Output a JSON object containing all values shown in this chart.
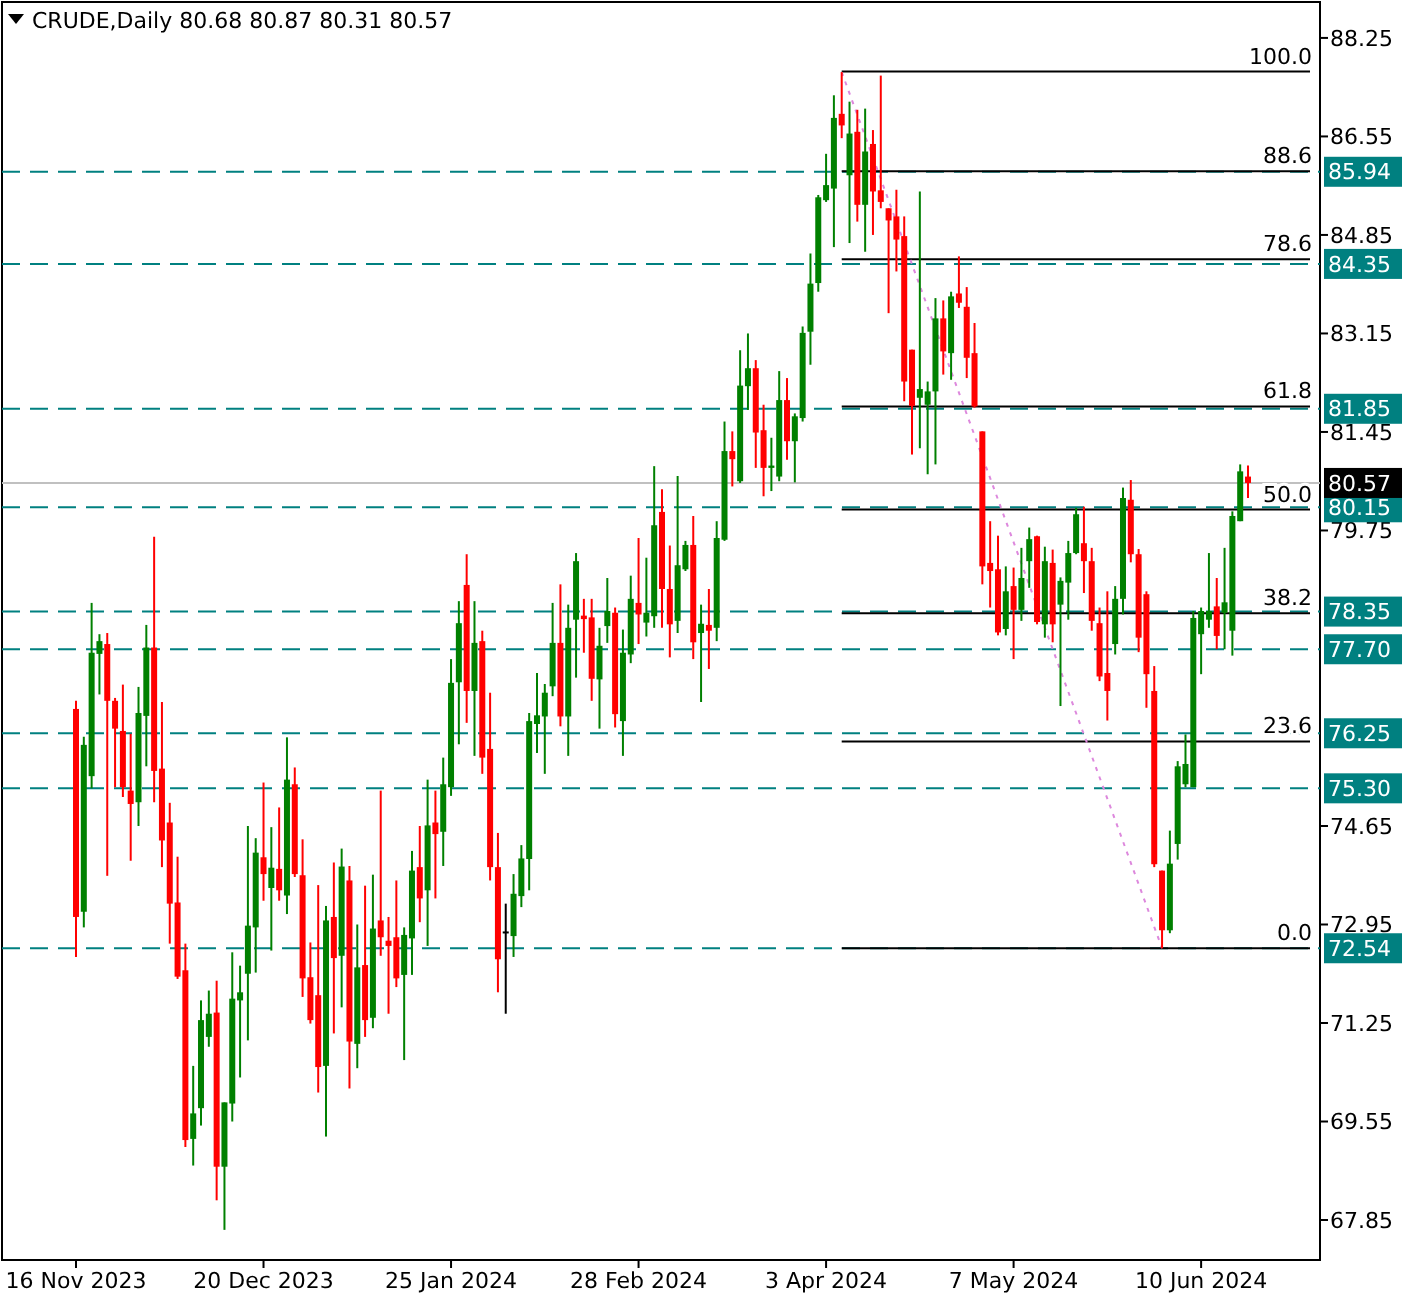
{
  "chart_data": {
    "type": "candlestick",
    "title": "CRUDE,Daily  80.68 80.87 80.31 80.57",
    "categories": [
      "16 Nov 2023",
      null,
      null,
      null,
      null,
      null,
      null,
      null,
      null,
      null,
      null,
      null,
      null,
      null,
      null,
      null,
      null,
      null,
      null,
      null,
      null,
      null,
      null,
      null,
      "20 Dec 2023",
      null,
      null,
      null,
      null,
      null,
      null,
      null,
      null,
      null,
      null,
      null,
      null,
      null,
      null,
      null,
      null,
      null,
      null,
      null,
      null,
      null,
      null,
      null,
      "25 Jan 2024",
      null,
      null,
      null,
      null,
      null,
      null,
      null,
      null,
      null,
      null,
      null,
      null,
      null,
      null,
      null,
      null,
      null,
      null,
      null,
      null,
      null,
      null,
      null,
      "28 Feb 2024",
      null,
      null,
      null,
      null,
      null,
      null,
      null,
      null,
      null,
      null,
      null,
      null,
      null,
      null,
      null,
      null,
      null,
      null,
      null,
      null,
      null,
      null,
      null,
      "3 Apr 2024",
      null,
      null,
      null,
      null,
      null,
      null,
      null,
      null,
      null,
      null,
      null,
      null,
      null,
      null,
      null,
      null,
      null,
      null,
      null,
      null,
      null,
      null,
      null,
      "7 May 2024",
      null,
      null,
      null,
      null,
      null,
      null,
      null,
      null,
      null,
      null,
      null,
      null,
      null,
      null,
      null,
      null,
      null,
      null,
      null,
      null,
      null,
      null,
      null,
      "10 Jun 2024",
      null,
      null,
      null,
      null,
      null,
      null
    ],
    "ohlc": [
      [
        76.67,
        76.81,
        72.39,
        73.08
      ],
      [
        73.17,
        76.19,
        72.9,
        76.05
      ],
      [
        75.51,
        78.5,
        75.3,
        77.64
      ],
      [
        77.62,
        77.96,
        76.92,
        77.84
      ],
      [
        77.79,
        77.98,
        73.79,
        76.81
      ],
      [
        76.81,
        76.86,
        75.32,
        76.33
      ],
      [
        76.29,
        77.09,
        75.15,
        75.32
      ],
      [
        75.26,
        76.24,
        74.05,
        75.03
      ],
      [
        75.06,
        77.05,
        74.65,
        76.6
      ],
      [
        76.55,
        78.12,
        75.68,
        77.73
      ],
      [
        77.73,
        79.64,
        75.06,
        75.6
      ],
      [
        75.64,
        76.79,
        73.94,
        74.4
      ],
      [
        74.71,
        75.05,
        72.62,
        73.31
      ],
      [
        73.33,
        74.12,
        72.01,
        72.05
      ],
      [
        72.16,
        72.62,
        69.11,
        69.23
      ],
      [
        69.25,
        70.51,
        68.79,
        69.69
      ],
      [
        69.78,
        71.64,
        69.48,
        71.3
      ],
      [
        71.01,
        71.81,
        70.84,
        71.41
      ],
      [
        71.43,
        71.98,
        68.19,
        68.77
      ],
      [
        68.77,
        69.88,
        67.68,
        69.88
      ],
      [
        69.86,
        72.47,
        69.55,
        71.67
      ],
      [
        71.64,
        72.24,
        70.31,
        71.78
      ],
      [
        72.1,
        74.65,
        70.95,
        72.93
      ],
      [
        72.9,
        74.44,
        72.12,
        74.19
      ],
      [
        74.11,
        75.4,
        73.36,
        73.82
      ],
      [
        73.58,
        74.63,
        72.5,
        73.93
      ],
      [
        73.91,
        74.97,
        73.36,
        73.54
      ],
      [
        73.45,
        76.18,
        73.13,
        75.45
      ],
      [
        75.37,
        75.66,
        73.77,
        73.82
      ],
      [
        73.8,
        74.42,
        71.7,
        72.02
      ],
      [
        72.04,
        72.64,
        71.24,
        71.3
      ],
      [
        71.73,
        73.63,
        70.05,
        70.49
      ],
      [
        70.51,
        73.27,
        69.29,
        73.02
      ],
      [
        73.08,
        74.02,
        71.07,
        72.37
      ],
      [
        72.41,
        74.26,
        71.52,
        73.95
      ],
      [
        73.71,
        73.96,
        70.12,
        70.93
      ],
      [
        70.89,
        72.95,
        70.47,
        72.21
      ],
      [
        72.25,
        73.62,
        71.01,
        71.3
      ],
      [
        71.34,
        73.81,
        71.16,
        72.88
      ],
      [
        73.02,
        75.26,
        72.41,
        72.73
      ],
      [
        72.67,
        73.08,
        71.41,
        72.58
      ],
      [
        72.73,
        73.71,
        71.87,
        72.02
      ],
      [
        72.08,
        72.9,
        70.61,
        72.77
      ],
      [
        72.71,
        74.22,
        72.08,
        73.88
      ],
      [
        73.94,
        74.65,
        72.99,
        73.4
      ],
      [
        73.54,
        75.45,
        72.58,
        74.66
      ],
      [
        74.71,
        75.26,
        73.4,
        74.51
      ],
      [
        74.55,
        75.83,
        73.96,
        75.37
      ],
      [
        75.32,
        77.53,
        75.17,
        77.12
      ],
      [
        77.13,
        78.53,
        76.06,
        78.15
      ],
      [
        78.81,
        79.34,
        76.43,
        76.98
      ],
      [
        76.98,
        78.53,
        75.86,
        77.81
      ],
      [
        77.84,
        78.02,
        75.55,
        75.83
      ],
      [
        75.98,
        76.95,
        73.71,
        73.94
      ],
      [
        73.94,
        74.53,
        71.78,
        72.35
      ],
      [
        72.83,
        73.31,
        71.41,
        72.83
      ],
      [
        72.75,
        73.82,
        72.39,
        73.48
      ],
      [
        73.44,
        74.32,
        73.25,
        74.09
      ],
      [
        74.08,
        76.6,
        73.54,
        76.46
      ],
      [
        76.41,
        77.29,
        75.91,
        76.56
      ],
      [
        76.54,
        77.1,
        75.55,
        76.95
      ],
      [
        77.06,
        78.5,
        76.89,
        77.81
      ],
      [
        77.81,
        78.82,
        76.37,
        76.54
      ],
      [
        76.54,
        78.47,
        75.86,
        78.07
      ],
      [
        78.21,
        79.36,
        77.21,
        79.22
      ],
      [
        78.28,
        78.57,
        77.64,
        78.22
      ],
      [
        78.25,
        78.57,
        76.81,
        77.19
      ],
      [
        77.18,
        78.07,
        76.33,
        77.76
      ],
      [
        78.1,
        78.93,
        77.81,
        78.36
      ],
      [
        78.33,
        78.42,
        76.35,
        76.58
      ],
      [
        76.46,
        78.04,
        75.86,
        77.64
      ],
      [
        77.61,
        78.97,
        77.46,
        78.57
      ],
      [
        78.5,
        79.62,
        77.79,
        78.3
      ],
      [
        78.16,
        79.28,
        77.92,
        78.33
      ],
      [
        78.27,
        80.86,
        78.07,
        79.84
      ],
      [
        80.07,
        80.46,
        78.07,
        78.74
      ],
      [
        78.74,
        79.49,
        77.56,
        78.13
      ],
      [
        78.19,
        80.69,
        77.98,
        79.15
      ],
      [
        79.08,
        79.57,
        79.05,
        79.5
      ],
      [
        79.5,
        80.0,
        77.53,
        77.82
      ],
      [
        77.98,
        78.47,
        76.79,
        78.14
      ],
      [
        78.12,
        78.74,
        77.36,
        78.02
      ],
      [
        78.07,
        79.91,
        77.84,
        79.62
      ],
      [
        79.59,
        81.63,
        79.57,
        81.12
      ],
      [
        81.12,
        81.46,
        80.51,
        80.98
      ],
      [
        80.6,
        82.86,
        80.57,
        82.25
      ],
      [
        82.24,
        83.15,
        81.83,
        82.55
      ],
      [
        82.55,
        82.69,
        80.83,
        81.44
      ],
      [
        81.48,
        81.92,
        80.34,
        80.83
      ],
      [
        80.83,
        81.35,
        80.43,
        80.87
      ],
      [
        80.68,
        82.5,
        80.6,
        82.0
      ],
      [
        82.0,
        82.38,
        80.97,
        81.29
      ],
      [
        81.29,
        81.77,
        80.58,
        81.72
      ],
      [
        81.69,
        83.27,
        81.63,
        83.16
      ],
      [
        83.18,
        84.53,
        82.61,
        84.01
      ],
      [
        84.02,
        85.54,
        83.87,
        85.5
      ],
      [
        85.45,
        86.25,
        85.42,
        85.71
      ],
      [
        85.65,
        87.26,
        84.64,
        86.87
      ],
      [
        86.94,
        87.66,
        86.52,
        86.74
      ],
      [
        85.88,
        87.15,
        84.71,
        86.6
      ],
      [
        86.63,
        87.01,
        85.08,
        85.37
      ],
      [
        85.37,
        87.03,
        84.56,
        86.29
      ],
      [
        86.42,
        86.66,
        84.85,
        85.6
      ],
      [
        85.62,
        87.6,
        85.31,
        85.42
      ],
      [
        85.31,
        85.31,
        83.5,
        85.1
      ],
      [
        85.17,
        85.63,
        84.22,
        84.77
      ],
      [
        84.83,
        85.17,
        81.98,
        82.32
      ],
      [
        82.87,
        82.87,
        81.06,
        81.9
      ],
      [
        82.04,
        85.6,
        81.17,
        82.19
      ],
      [
        81.92,
        82.32,
        80.72,
        82.15
      ],
      [
        82.15,
        83.76,
        80.89,
        83.41
      ],
      [
        83.41,
        83.72,
        82.44,
        82.84
      ],
      [
        82.81,
        83.87,
        82.35,
        83.79
      ],
      [
        83.84,
        84.48,
        83.59,
        83.68
      ],
      [
        83.61,
        83.95,
        82.38,
        82.73
      ],
      [
        82.81,
        83.33,
        81.87,
        81.89
      ],
      [
        81.46,
        81.46,
        78.82,
        79.13
      ],
      [
        79.19,
        79.91,
        78.42,
        79.05
      ],
      [
        79.08,
        79.66,
        77.94,
        77.99
      ],
      [
        78.05,
        79.13,
        77.94,
        78.7
      ],
      [
        78.79,
        79.11,
        77.53,
        78.38
      ],
      [
        78.38,
        79.45,
        78.19,
        78.93
      ],
      [
        79.22,
        79.8,
        78.76,
        79.6
      ],
      [
        79.65,
        79.66,
        78.13,
        78.17
      ],
      [
        78.13,
        79.47,
        77.9,
        79.22
      ],
      [
        79.19,
        79.42,
        77.82,
        78.13
      ],
      [
        78.47,
        78.94,
        76.72,
        78.88
      ],
      [
        78.85,
        79.57,
        78.21,
        79.36
      ],
      [
        79.36,
        80.14,
        79.34,
        80.03
      ],
      [
        79.53,
        80.16,
        78.67,
        79.22
      ],
      [
        79.22,
        79.45,
        78.02,
        78.19
      ],
      [
        78.15,
        78.42,
        77.15,
        77.23
      ],
      [
        77.29,
        78.7,
        76.47,
        76.98
      ],
      [
        77.79,
        78.79,
        77.61,
        78.57
      ],
      [
        78.57,
        80.49,
        78.3,
        80.31
      ],
      [
        80.28,
        80.62,
        79.2,
        79.34
      ],
      [
        79.34,
        79.43,
        77.65,
        77.9
      ],
      [
        78.65,
        78.7,
        76.69,
        77.27
      ],
      [
        76.98,
        77.41,
        73.94,
        73.99
      ],
      [
        73.88,
        73.88,
        72.54,
        72.85
      ],
      [
        72.85,
        74.57,
        72.8,
        74.0
      ],
      [
        74.34,
        75.77,
        74.07,
        75.68
      ],
      [
        75.37,
        76.23,
        75.32,
        75.72
      ],
      [
        75.32,
        78.36,
        75.32,
        78.24
      ],
      [
        77.96,
        78.42,
        77.27,
        78.36
      ],
      [
        78.21,
        79.36,
        78.07,
        78.36
      ],
      [
        78.44,
        78.93,
        77.7,
        77.93
      ],
      [
        78.33,
        79.45,
        77.7,
        78.51
      ],
      [
        78.02,
        80.08,
        77.59,
        80.0
      ],
      [
        79.91,
        80.89,
        79.91,
        80.77
      ],
      [
        80.68,
        80.87,
        80.31,
        80.57
      ]
    ],
    "annotations": [
      {
        "text": "100.0",
        "y": 87.67
      },
      {
        "text": "88.6",
        "y": 85.95
      },
      {
        "text": "78.6",
        "y": 84.43
      },
      {
        "text": "61.8",
        "y": 81.89
      },
      {
        "text": "50.0",
        "y": 80.11
      },
      {
        "text": "38.2",
        "y": 78.32
      },
      {
        "text": "23.6",
        "y": 76.11
      },
      {
        "text": "0.0",
        "y": 72.54
      }
    ],
    "series": [
      {
        "type": "line",
        "color": "#dd88dd",
        "line_style": "dotted",
        "values": [
          null,
          null,
          null,
          null,
          null,
          null,
          null,
          null,
          null,
          null,
          null,
          null,
          null,
          null,
          null,
          null,
          null,
          null,
          null,
          null,
          null,
          null,
          null,
          null,
          null,
          null,
          null,
          null,
          null,
          null,
          null,
          null,
          null,
          null,
          null,
          null,
          null,
          null,
          null,
          null,
          null,
          null,
          null,
          null,
          null,
          null,
          null,
          null,
          null,
          null,
          null,
          null,
          null,
          null,
          null,
          null,
          null,
          null,
          null,
          null,
          null,
          null,
          null,
          null,
          null,
          null,
          null,
          null,
          null,
          null,
          null,
          null,
          null,
          null,
          null,
          null,
          null,
          null,
          null,
          null,
          null,
          null,
          null,
          null,
          null,
          null,
          null,
          null,
          null,
          null,
          null,
          null,
          null,
          null,
          null,
          null,
          null,
          null,
          87.66,
          null,
          null,
          null,
          null,
          null,
          null,
          null,
          null,
          null,
          null,
          null,
          null,
          null,
          null,
          null,
          null,
          null,
          null,
          null,
          null,
          null,
          null,
          null,
          null,
          null,
          null,
          null,
          null,
          null,
          null,
          null,
          null,
          null,
          null,
          null,
          null,
          null,
          null,
          null,
          null,
          72.54,
          null,
          null,
          null,
          null,
          null,
          null,
          null,
          null,
          null,
          null,
          null
        ]
      }
    ],
    "ylim": [
      67.16,
      88.87
    ],
    "yticks": [
      88.25,
      86.55,
      84.85,
      83.15,
      81.45,
      79.75,
      74.65,
      72.95,
      71.25,
      69.55,
      67.85
    ],
    "ref_lines": [
      {
        "axis": "y",
        "value": 85.94,
        "label": "85.94",
        "color": "#008080",
        "line_style": "dashed"
      },
      {
        "axis": "y",
        "value": 84.35,
        "label": "84.35",
        "color": "#008080",
        "line_style": "dashed"
      },
      {
        "axis": "y",
        "value": 81.85,
        "label": "81.85",
        "color": "#008080",
        "line_style": "dashed"
      },
      {
        "axis": "y",
        "value": 80.15,
        "label": "80.15",
        "color": "#008080",
        "line_style": "dashed"
      },
      {
        "axis": "y",
        "value": 78.35,
        "label": "78.35",
        "color": "#008080",
        "line_style": "dashed"
      },
      {
        "axis": "y",
        "value": 77.7,
        "label": "77.70",
        "color": "#008080",
        "line_style": "dashed"
      },
      {
        "axis": "y",
        "value": 76.25,
        "label": "76.25",
        "color": "#008080",
        "line_style": "dashed"
      },
      {
        "axis": "y",
        "value": 75.3,
        "label": "75.30",
        "color": "#008080",
        "line_style": "dashed"
      },
      {
        "axis": "y",
        "value": 72.54,
        "label": "72.54",
        "color": "#008080",
        "line_style": "dashed"
      },
      {
        "axis": "y",
        "value": 80.57,
        "label": "80.57",
        "color": "#c0c0c0",
        "line_style": "solid"
      },
      {
        "axis": "y",
        "value": 87.67,
        "color": "#000000",
        "line_style": "solid"
      },
      {
        "axis": "y",
        "value": 85.95,
        "color": "#000000",
        "line_style": "solid"
      },
      {
        "axis": "y",
        "value": 84.43,
        "color": "#000000",
        "line_style": "solid"
      },
      {
        "axis": "y",
        "value": 81.89,
        "color": "#000000",
        "line_style": "solid"
      },
      {
        "axis": "y",
        "value": 80.11,
        "color": "#000000",
        "line_style": "solid"
      },
      {
        "axis": "y",
        "value": 78.32,
        "color": "#000000",
        "line_style": "solid"
      },
      {
        "axis": "y",
        "value": 76.11,
        "color": "#000000",
        "line_style": "solid"
      },
      {
        "axis": "y",
        "value": 72.54,
        "color": "#000000",
        "line_style": "solid"
      }
    ]
  }
}
